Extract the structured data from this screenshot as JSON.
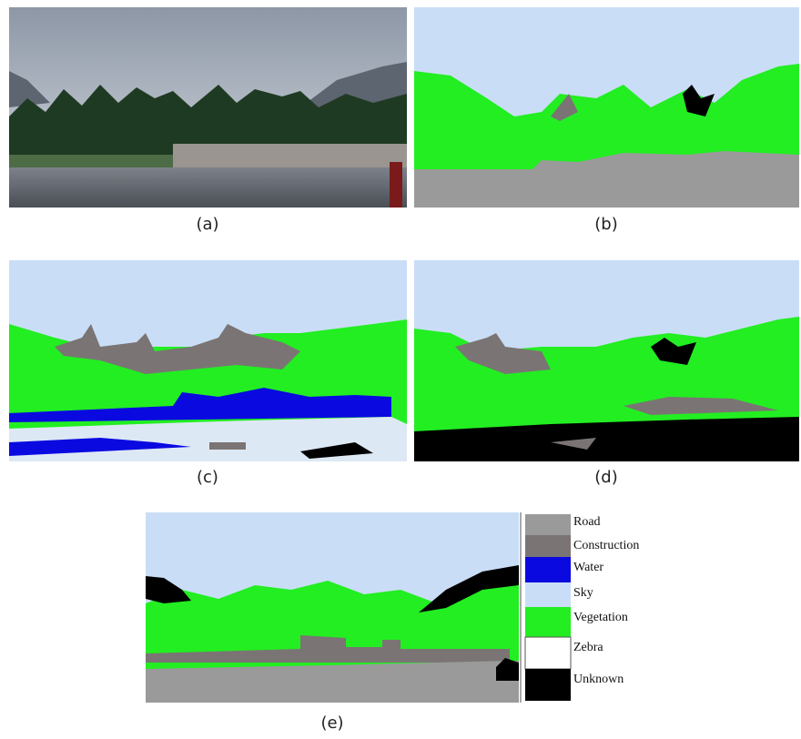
{
  "panels": [
    {
      "label": "(a)"
    },
    {
      "label": "(b)"
    },
    {
      "label": "(c)"
    },
    {
      "label": "(d)"
    },
    {
      "label": "(e)"
    }
  ],
  "legend": [
    {
      "label": "Road",
      "color": "#9a9a9a"
    },
    {
      "label": "Construction",
      "color": "#7b7474"
    },
    {
      "label": "Water",
      "color": "#0a0ae0"
    },
    {
      "label": "Sky",
      "color": "#c9def6"
    },
    {
      "label": "Vegetation",
      "color": "#22ee22"
    },
    {
      "label": "Zebra",
      "color": "#ffffff"
    },
    {
      "label": "Unknown",
      "color": "#000000"
    }
  ]
}
